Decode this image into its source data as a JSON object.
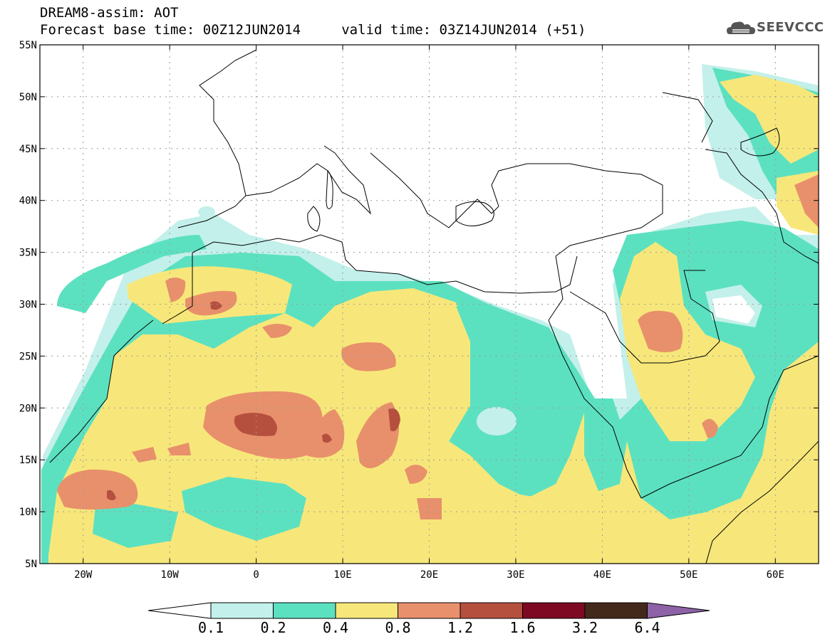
{
  "header": {
    "title_line1": "DREAM8-assim: AOT",
    "title_line2": "Forecast base time: 00Z12JUN2014     valid time: 03Z14JUN2014 (+51)",
    "logo_text": "SEEVCCC"
  },
  "map": {
    "lat_labels": [
      "55N",
      "50N",
      "45N",
      "40N",
      "35N",
      "30N",
      "25N",
      "20N",
      "15N",
      "10N",
      "5N"
    ],
    "lon_labels": [
      "20W",
      "10W",
      "0",
      "10E",
      "20E",
      "30E",
      "40E",
      "50E",
      "60E"
    ],
    "lon_range": [
      -25,
      65
    ],
    "lat_range": [
      5,
      55
    ]
  },
  "legend": {
    "levels": [
      "0.1",
      "0.2",
      "0.4",
      "0.8",
      "1.2",
      "1.6",
      "3.2",
      "6.4"
    ],
    "colors": [
      "#ffffff",
      "#c3f0ea",
      "#5ce1c0",
      "#f7e77a",
      "#e8906b",
      "#b5503f",
      "#7d0a22",
      "#43291a",
      "#8d62a6"
    ]
  },
  "colors": {
    "c1": "#c3f0ea",
    "c2": "#5ce1c0",
    "c3": "#f7e77a",
    "c4": "#e8906b",
    "c5": "#b5503f",
    "grid": "#9a9a9a"
  }
}
